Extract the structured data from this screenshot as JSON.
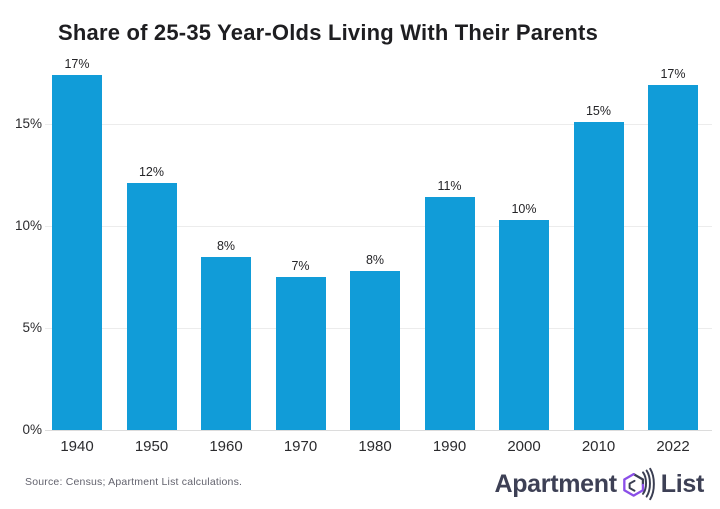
{
  "title": "Share of 25-35 Year-Olds Living With Their Parents",
  "source_note": "Source: Census; Apartment List calculations.",
  "logo": {
    "prefix": "Apartment",
    "suffix": "List",
    "icon": "apartment-list-mark"
  },
  "colors": {
    "bar": "#119CD8",
    "grid": "#ECECEC",
    "baseline": "#DCDCDC",
    "title_text": "#1E1E21",
    "axis_text": "#2B2B2E",
    "source_text": "#63636E",
    "logo_text": "#3D4055",
    "logo_purple": "#8B4FE8",
    "logo_dark": "#3A3E52"
  },
  "chart_data": {
    "type": "bar",
    "title": "Share of 25-35 Year-Olds Living With Their Parents",
    "categories": [
      "1940",
      "1950",
      "1960",
      "1970",
      "1980",
      "1990",
      "2000",
      "2010",
      "2022"
    ],
    "values": [
      17.4,
      12.1,
      8.5,
      7.5,
      7.8,
      11.4,
      10.3,
      15.1,
      16.9
    ],
    "bar_labels": [
      "17%",
      "12%",
      "8%",
      "7%",
      "8%",
      "11%",
      "10%",
      "15%",
      "17%"
    ],
    "xlabel": "",
    "ylabel": "",
    "yticks": [
      {
        "value": 0,
        "label": "0%"
      },
      {
        "value": 5,
        "label": "5%"
      },
      {
        "value": 10,
        "label": "10%"
      },
      {
        "value": 15,
        "label": "15%"
      }
    ],
    "ylim": [
      0,
      18.5
    ],
    "grid": "horizontal-light",
    "legend": "none",
    "bar_color": "#119CD8"
  }
}
